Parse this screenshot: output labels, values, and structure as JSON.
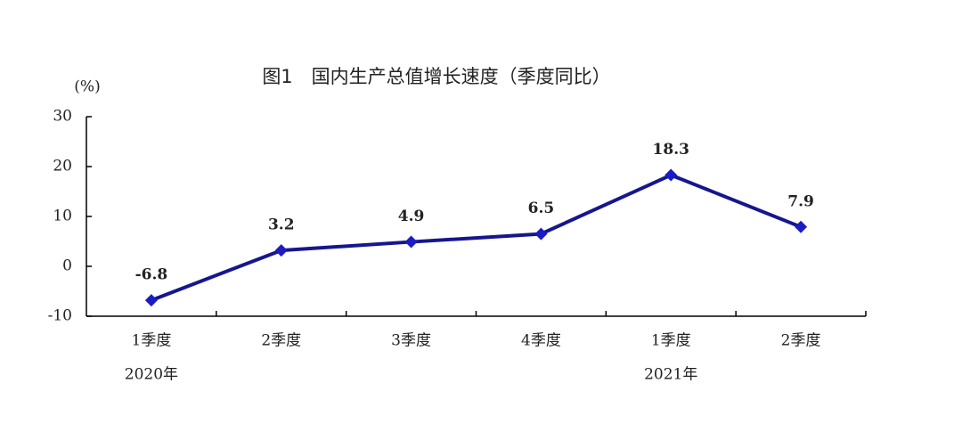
{
  "chart_data": {
    "type": "line",
    "title": "图1　国内生产总值增长速度（季度同比）",
    "y_label": "(%)",
    "categories": [
      "1季度",
      "2季度",
      "3季度",
      "4季度",
      "1季度",
      "2季度"
    ],
    "x_groups": [
      "2020年",
      null,
      null,
      null,
      "2021年",
      null
    ],
    "values": [
      -6.8,
      3.2,
      4.9,
      6.5,
      18.3,
      7.9
    ],
    "color": "#16168e",
    "marker_color": "#1c1cc4",
    "ylim": [
      -10,
      30
    ],
    "yticks": [
      -10,
      0,
      10,
      20,
      30
    ],
    "grid": false
  }
}
